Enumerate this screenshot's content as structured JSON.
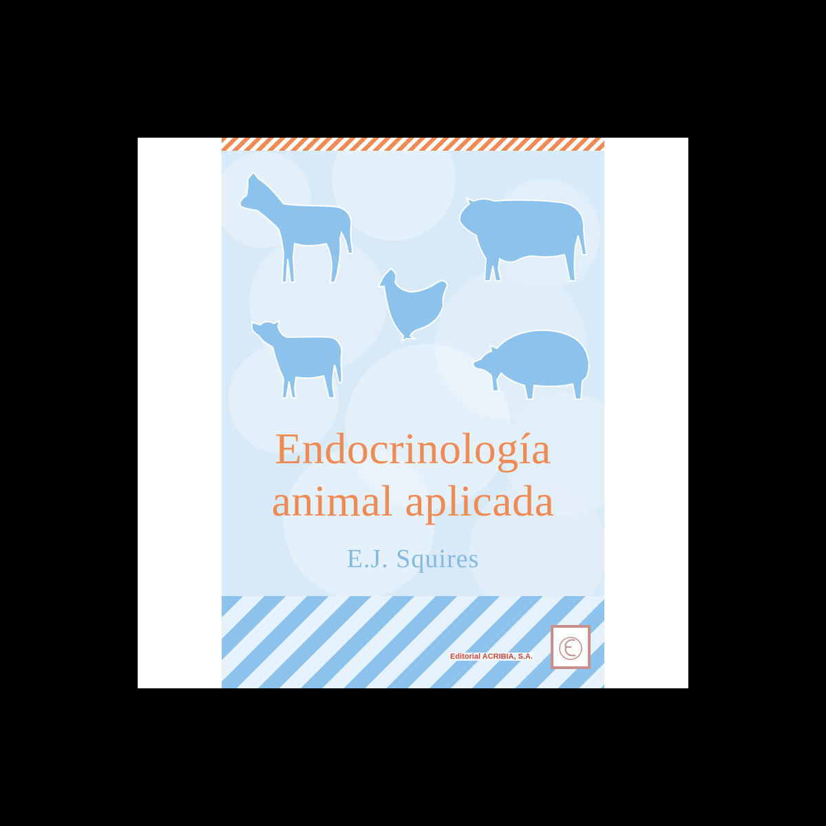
{
  "book": {
    "title_line1": "Endocrinología",
    "title_line2": "animal aplicada",
    "author": "E.J. Squires",
    "publisher": "Editorial ACRIBIA, S.A."
  },
  "colors": {
    "frame": "#000000",
    "page": "#ffffff",
    "cover_background": "#d8e9f7",
    "title": "#ef8a55",
    "author": "#86b9e0",
    "animal_silhouette": "#8cc2ec",
    "top_stripe": "#f08a54",
    "bottom_stripe": "#8cc2ec",
    "publisher_text": "#d0463d"
  },
  "illustrations": [
    "horse-icon",
    "bull-icon",
    "hen-icon",
    "calf-icon",
    "pig-icon"
  ]
}
